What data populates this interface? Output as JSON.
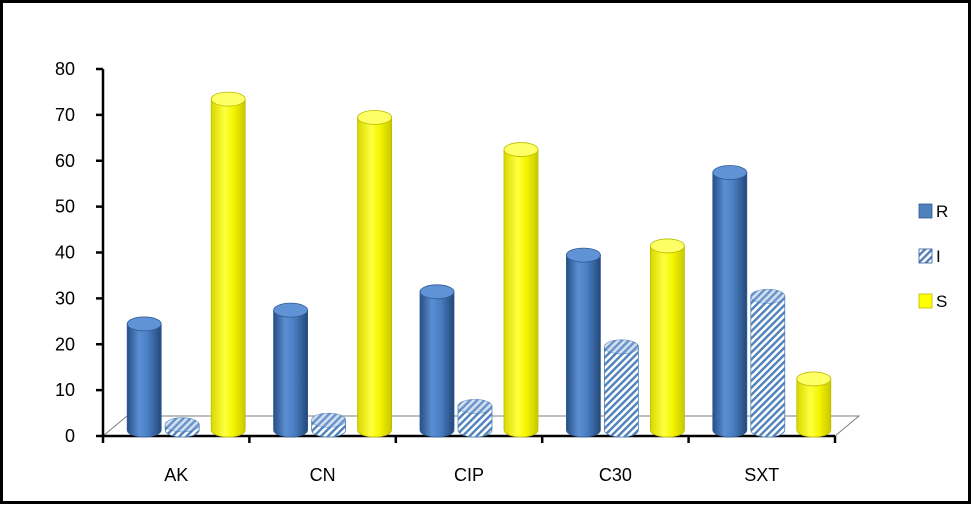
{
  "chart_data": {
    "type": "bar",
    "style": "3d-cylinder",
    "categories": [
      "AK",
      "CN",
      "CIP",
      "C30",
      "SXT"
    ],
    "series": [
      {
        "name": "R",
        "values": [
          24,
          27,
          31,
          39,
          57
        ],
        "color": "#3f72b8",
        "pattern": "solid"
      },
      {
        "name": "I",
        "values": [
          2,
          3,
          6,
          19,
          30
        ],
        "color": "#4f81bd",
        "pattern": "diagonal-hatch"
      },
      {
        "name": "S",
        "values": [
          73,
          69,
          62,
          41,
          12
        ],
        "color": "#ffff00",
        "pattern": "solid"
      }
    ],
    "title": "",
    "xlabel": "",
    "ylabel": "",
    "ylim": [
      0,
      80
    ],
    "yticks": [
      0,
      10,
      20,
      30,
      40,
      50,
      60,
      70,
      80
    ],
    "grid": false,
    "legend": "right"
  }
}
